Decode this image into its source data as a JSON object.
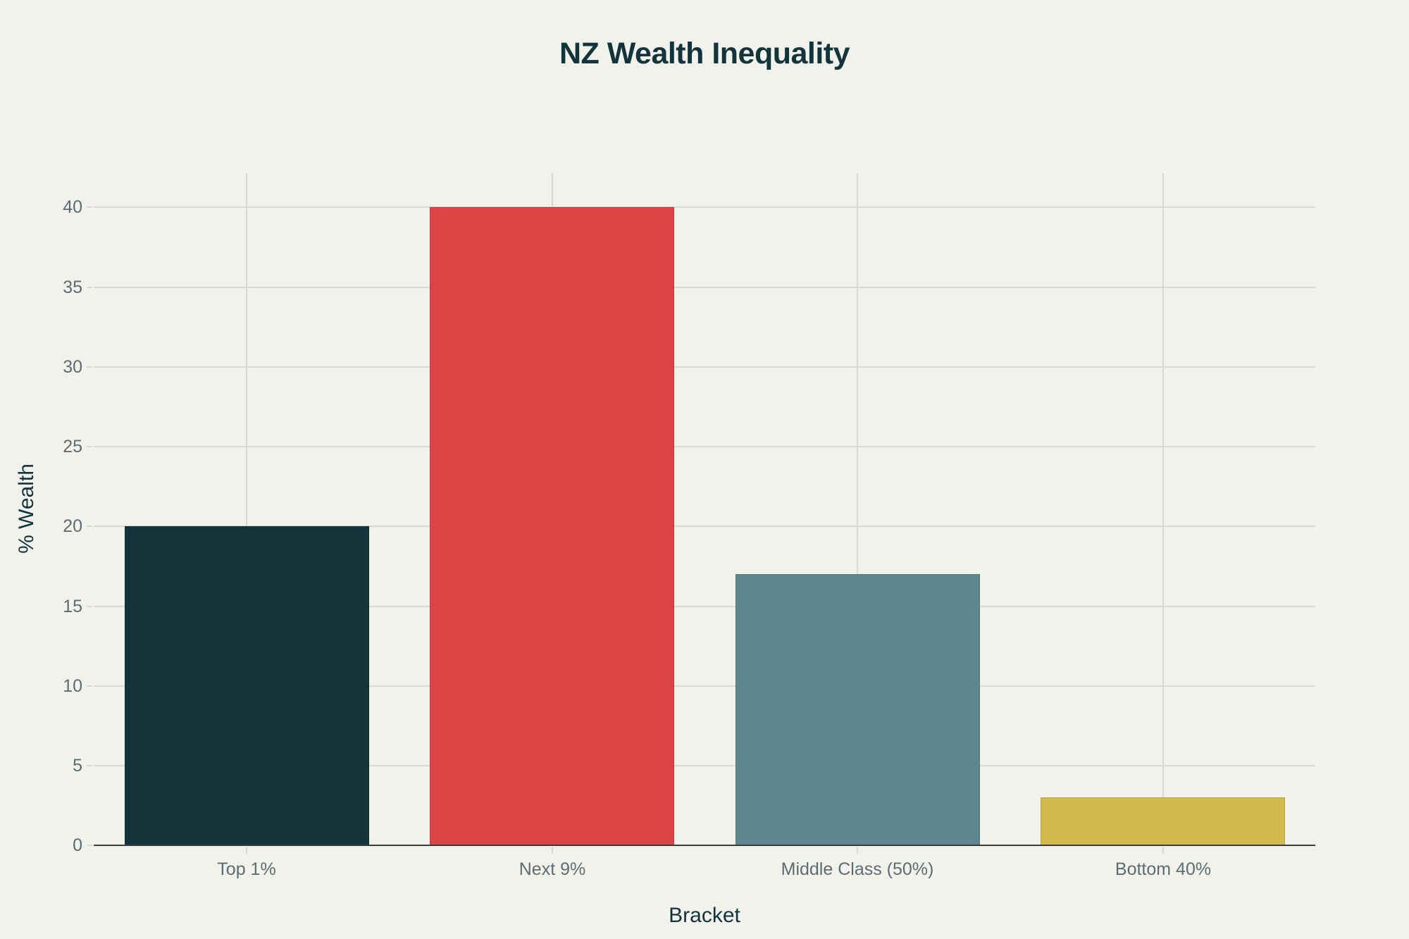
{
  "chart_data": {
    "type": "bar",
    "title": "NZ Wealth Inequality",
    "xlabel": "Bracket",
    "ylabel": "% Wealth",
    "categories": [
      "Top 1%",
      "Next 9%",
      "Middle Class (50%)",
      "Bottom 40%"
    ],
    "values": [
      20,
      40,
      17,
      3
    ],
    "colors": [
      "#13343b",
      "#db4545",
      "#5d878f",
      "#d2ba4c"
    ],
    "ylim": [
      0,
      42
    ],
    "yticks": [
      0,
      5,
      10,
      15,
      20,
      25,
      30,
      35,
      40
    ],
    "grid": true,
    "legend": "none"
  },
  "labels": {
    "title": "NZ Wealth Inequality",
    "xlabel": "Bracket",
    "ylabel": "% Wealth",
    "yticks": [
      "0",
      "5",
      "10",
      "15",
      "20",
      "25",
      "30",
      "35",
      "40"
    ],
    "xticks": [
      "Top 1%",
      "Next 9%",
      "Middle Class (50%)",
      "Bottom 40%"
    ]
  }
}
